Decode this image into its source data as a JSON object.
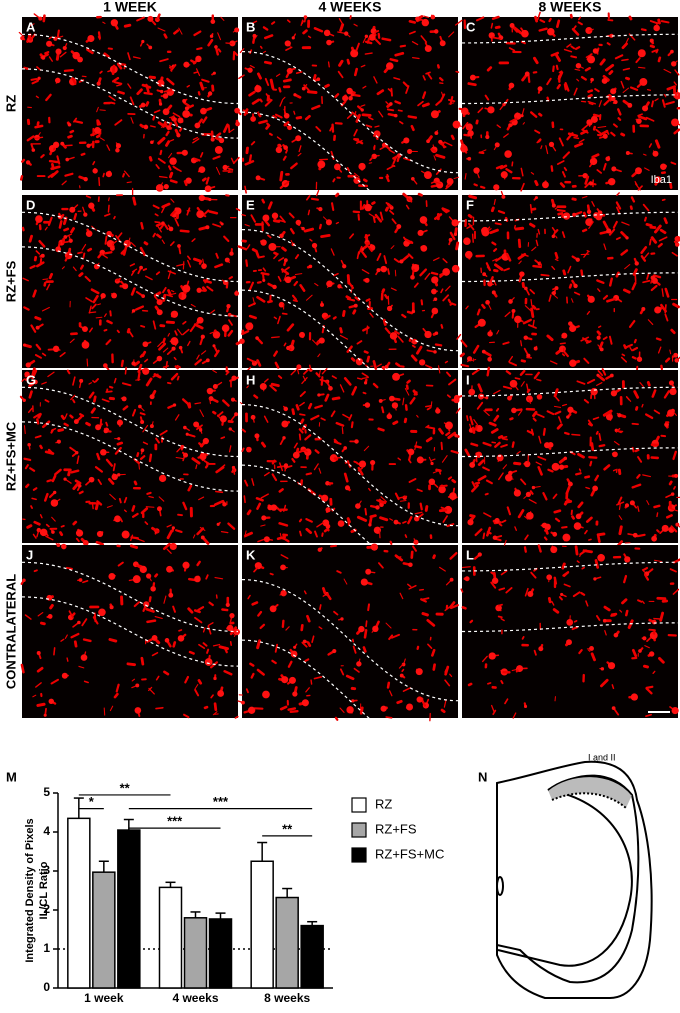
{
  "figure": {
    "column_headers": [
      "1 WEEK",
      "4 WEEKS",
      "8 WEEKS"
    ],
    "row_labels": [
      "RZ",
      "RZ+FS",
      "RZ+FS+MC",
      "CONTRALATERAL"
    ],
    "panel_letters": [
      "A",
      "B",
      "C",
      "D",
      "E",
      "F",
      "G",
      "H",
      "I",
      "J",
      "K",
      "L"
    ],
    "stain": "Iba1"
  },
  "chart_data": {
    "type": "bar",
    "panel_letter": "M",
    "y_label": [
      "Integrated Density of Pixels",
      "IL/CL Ratio"
    ],
    "categories": [
      "1 week",
      "4 weeks",
      "8 weeks"
    ],
    "series": [
      {
        "name": "RZ",
        "color": "#ffffff",
        "values": [
          4.35,
          2.58,
          3.25
        ],
        "errors": [
          0.52,
          0.13,
          0.48
        ]
      },
      {
        "name": "RZ+FS",
        "color": "#a6a6a6",
        "values": [
          2.97,
          1.8,
          2.32
        ],
        "errors": [
          0.28,
          0.15,
          0.23
        ]
      },
      {
        "name": "RZ+FS+MC",
        "color": "#000000",
        "values": [
          4.05,
          1.77,
          1.6
        ],
        "errors": [
          0.27,
          0.15,
          0.1
        ]
      }
    ],
    "ylim": [
      0,
      5
    ],
    "yticks": [
      0,
      1,
      2,
      3,
      4,
      5
    ],
    "reference_line": 1,
    "significance": [
      {
        "label": "*",
        "y": 4.6,
        "between": [
          [
            0,
            0
          ],
          [
            0,
            1
          ]
        ]
      },
      {
        "label": "**",
        "y": 4.95,
        "between": [
          [
            0,
            0
          ],
          [
            1,
            0
          ]
        ]
      },
      {
        "label": "***",
        "y": 4.6,
        "between": [
          [
            0,
            2
          ],
          [
            2,
            2
          ]
        ]
      },
      {
        "label": "***",
        "y": 4.1,
        "between": [
          [
            0,
            2
          ],
          [
            1,
            2
          ]
        ]
      },
      {
        "label": "**",
        "y": 3.9,
        "between": [
          [
            2,
            0
          ],
          [
            2,
            2
          ]
        ]
      }
    ]
  },
  "panel_n": {
    "letter": "N",
    "region_label": "I and II"
  }
}
